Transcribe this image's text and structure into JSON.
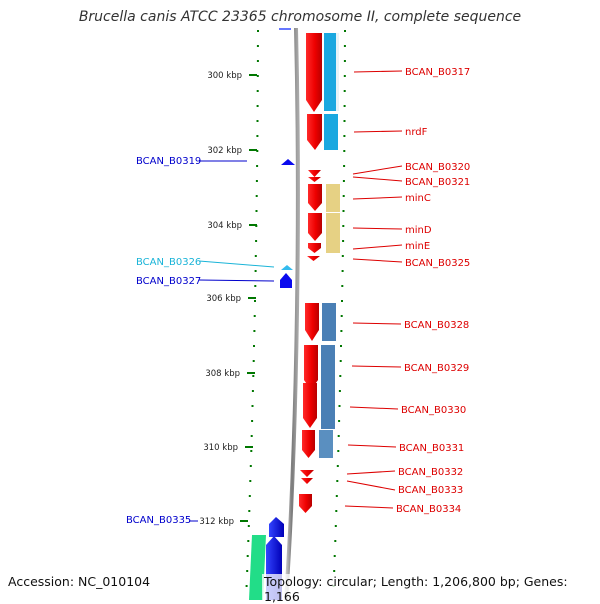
{
  "title": "Brucella canis ATCC 23365 chromosome II, complete sequence",
  "footer": {
    "accession": "Accession: NC_010104",
    "summary": "Topology: circular; Length: 1,206,800 bp; Genes: 1,166"
  },
  "colors": {
    "forward_gene": "#ff0000",
    "reverse_gene": "#0000ff",
    "backbone": "#8a8a8a",
    "tick": "#007700",
    "cog_blue": "#1aa8e0",
    "cog_khaki": "#e8d080",
    "cog_steel": "#4a7fb5",
    "cog_green": "#22dd88",
    "label_red": "#dd0000",
    "label_blue": "#0000cc",
    "label_cyan": "#1ab4d8"
  },
  "scale": {
    "ticks": [
      "300 kbp",
      "302 kbp",
      "304 kbp",
      "306 kbp",
      "308 kbp",
      "310 kbp",
      "312 kbp"
    ]
  },
  "genes_right": [
    "BCAN_B0317",
    "nrdF",
    "BCAN_B0320",
    "BCAN_B0321",
    "minC",
    "minD",
    "minE",
    "BCAN_B0325",
    "BCAN_B0328",
    "BCAN_B0329",
    "BCAN_B0330",
    "BCAN_B0331",
    "BCAN_B0332",
    "BCAN_B0333",
    "BCAN_B0334"
  ],
  "genes_left": [
    "BCAN_B0319",
    "BCAN_B0326",
    "BCAN_B0327",
    "BCAN_B0335"
  ]
}
